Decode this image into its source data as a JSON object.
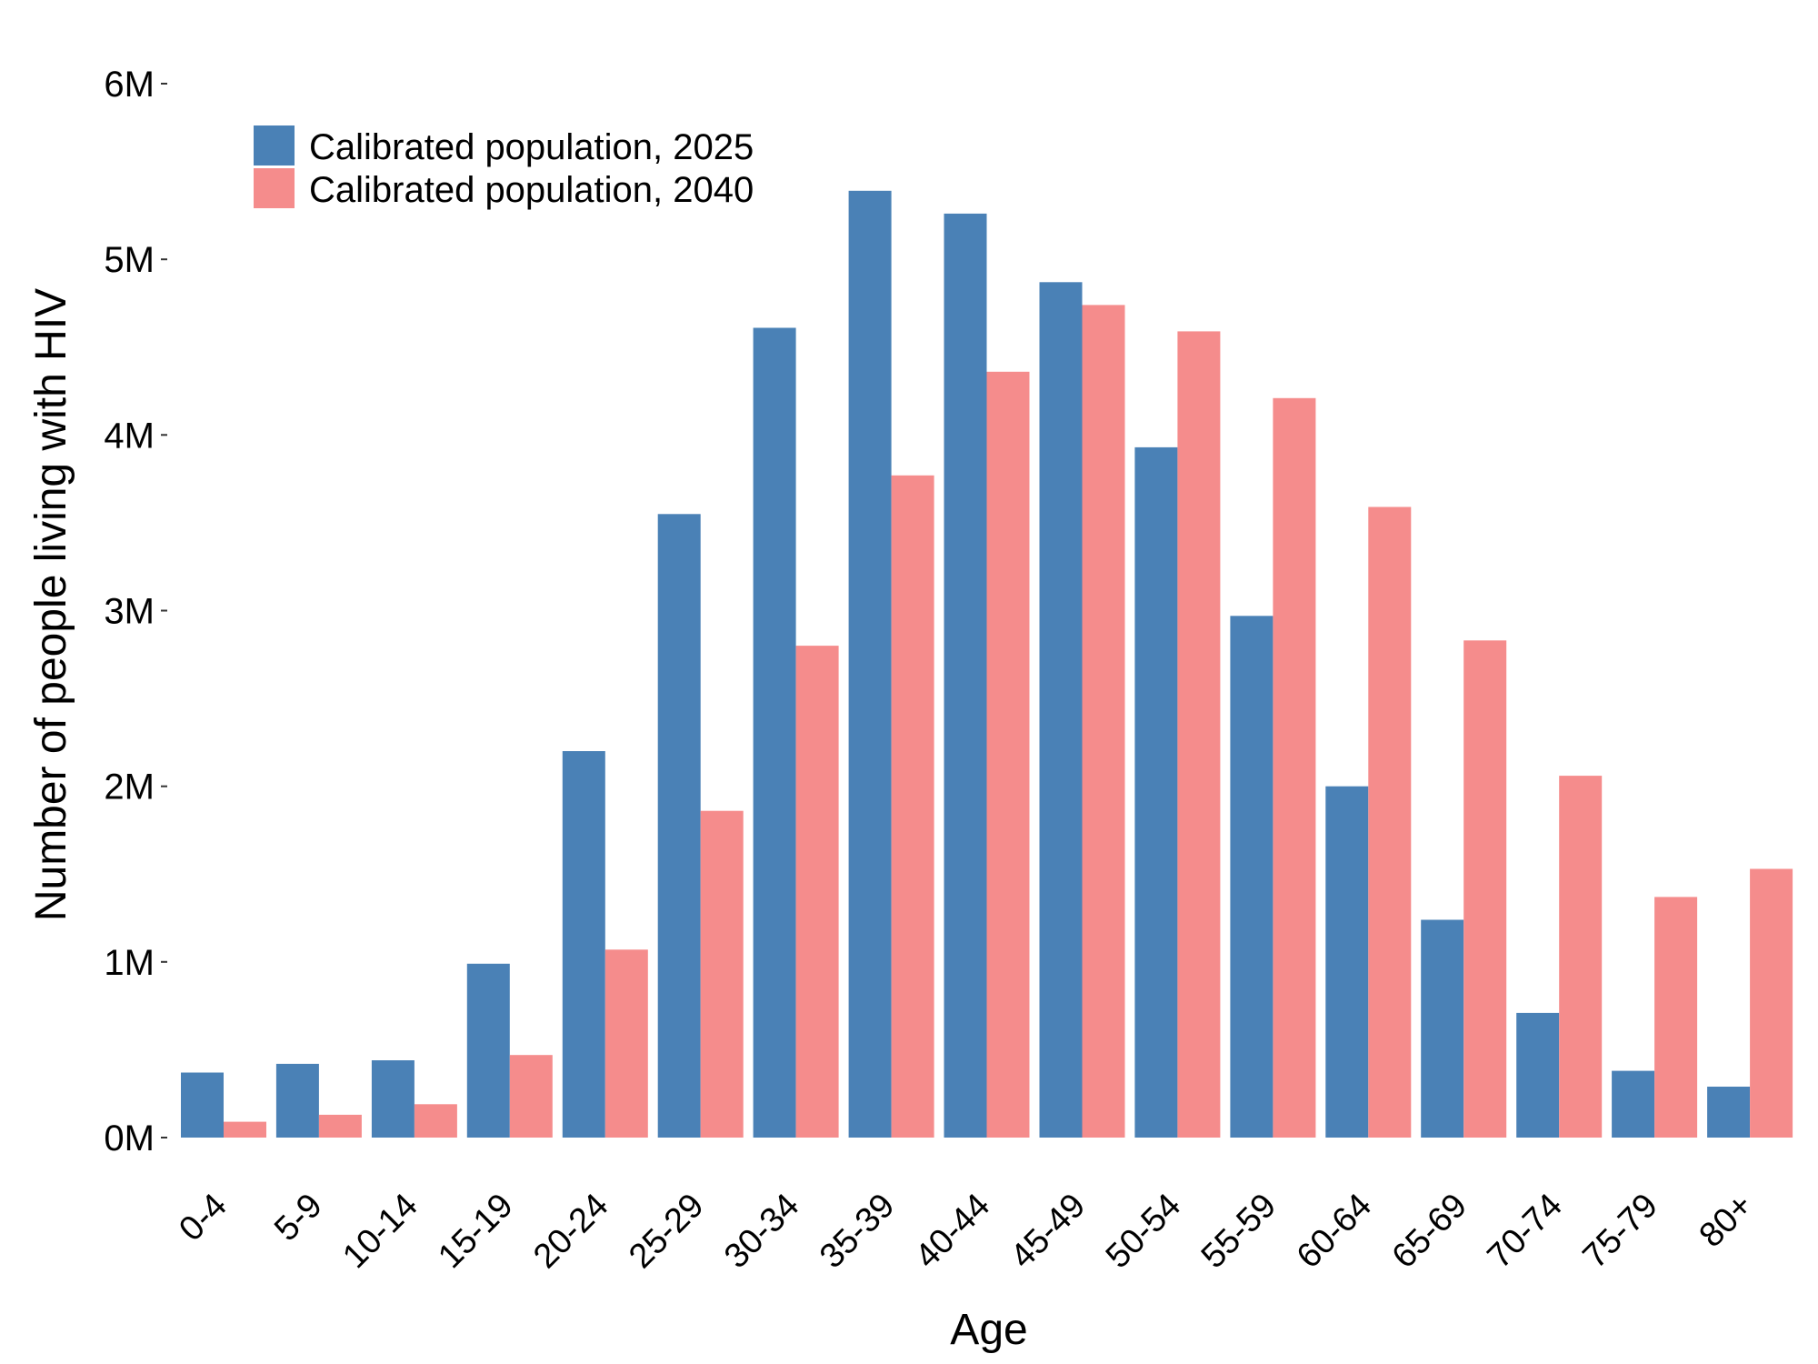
{
  "chart_data": {
    "type": "bar",
    "title": "",
    "xlabel": "Age",
    "ylabel": "Number of people living with HIV",
    "categories": [
      "0-4",
      "5-9",
      "10-14",
      "15-19",
      "20-24",
      "25-29",
      "30-34",
      "35-39",
      "40-44",
      "45-49",
      "50-54",
      "55-59",
      "60-64",
      "65-69",
      "70-74",
      "75-79",
      "80+"
    ],
    "series": [
      {
        "name": "Calibrated population, 2025",
        "color": "#4a81b6",
        "values": [
          0.37,
          0.42,
          0.44,
          0.99,
          2.2,
          3.55,
          4.61,
          5.39,
          5.26,
          4.87,
          3.93,
          2.97,
          2.0,
          1.24,
          0.71,
          0.38,
          0.29
        ]
      },
      {
        "name": "Calibrated population, 2040",
        "color": "#f58c8c",
        "values": [
          0.09,
          0.13,
          0.19,
          0.47,
          1.07,
          1.86,
          2.8,
          3.77,
          4.36,
          4.74,
          4.59,
          4.21,
          3.59,
          2.83,
          2.06,
          1.37,
          1.53
        ]
      }
    ],
    "y_unit": "M",
    "ylim": [
      0,
      6
    ],
    "y_ticks": [
      "0M",
      "1M",
      "2M",
      "3M",
      "4M",
      "5M",
      "6M"
    ],
    "grid": false,
    "legend_position": "top-left"
  }
}
